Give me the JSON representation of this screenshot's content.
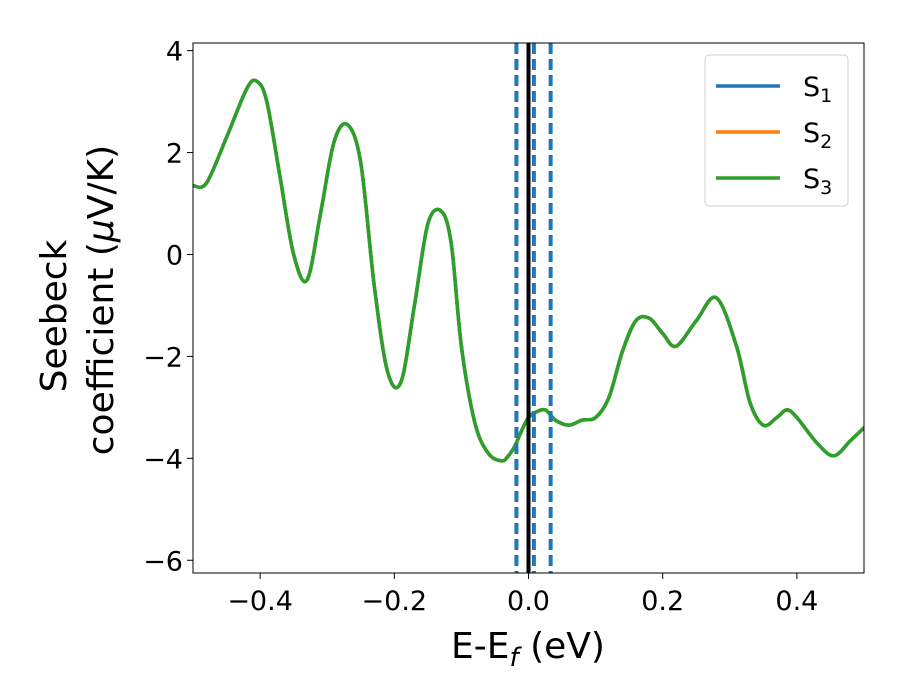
{
  "chart_data": {
    "type": "line",
    "title": "",
    "xlabel": "E-E",
    "xlabel_sub": "f",
    "xlabel_unit": " (eV)",
    "ylabel_line1": "Seebeck",
    "ylabel_line2": "coefficient  (",
    "ylabel_mu": "μ",
    "ylabel_unit": "V/K)",
    "xlim": [
      -0.5,
      0.5
    ],
    "ylim": [
      -6.25,
      4.15
    ],
    "xticks": [
      -0.4,
      -0.2,
      0.0,
      0.2,
      0.4
    ],
    "xtick_labels": [
      "−0.4",
      "−0.2",
      "0.0",
      "0.2",
      "0.4"
    ],
    "yticks": [
      -6,
      -4,
      -2,
      0,
      2,
      4
    ],
    "ytick_labels": [
      "−6",
      "−4",
      "−2",
      "0",
      "2",
      "4"
    ],
    "grid": false,
    "legend_position": "top-right",
    "fermi_line_x": 0.0,
    "dashed_lines_x": [
      -0.018,
      0.008,
      0.033
    ],
    "colors": {
      "s1": "#1f77b4",
      "s2": "#ff7f0e",
      "s3": "#2ca02c",
      "fermi": "#000000"
    },
    "series": [
      {
        "name": "S",
        "sub": "1",
        "color": "#1f77b4",
        "x": [
          -0.5,
          -0.48,
          -0.45,
          -0.42,
          -0.405,
          -0.39,
          -0.37,
          -0.35,
          -0.33,
          -0.31,
          -0.29,
          -0.27,
          -0.25,
          -0.23,
          -0.21,
          -0.19,
          -0.17,
          -0.15,
          -0.13,
          -0.115,
          -0.1,
          -0.08,
          -0.06,
          -0.04,
          -0.03,
          -0.02,
          -0.01,
          0.0,
          0.01,
          0.025,
          0.04,
          0.06,
          0.08,
          0.1,
          0.12,
          0.14,
          0.16,
          0.18,
          0.2,
          0.22,
          0.25,
          0.28,
          0.31,
          0.33,
          0.35,
          0.37,
          0.385,
          0.4,
          0.43,
          0.455,
          0.48,
          0.5
        ],
        "values": [
          1.35,
          1.4,
          2.3,
          3.25,
          3.4,
          3.0,
          1.5,
          0.0,
          -0.5,
          0.8,
          2.2,
          2.55,
          1.8,
          -0.6,
          -2.3,
          -2.5,
          -1.0,
          0.6,
          0.85,
          0.2,
          -1.8,
          -3.3,
          -3.9,
          -4.05,
          -3.95,
          -3.75,
          -3.45,
          -3.2,
          -3.1,
          -3.05,
          -3.25,
          -3.35,
          -3.25,
          -3.2,
          -2.8,
          -1.9,
          -1.3,
          -1.25,
          -1.55,
          -1.8,
          -1.3,
          -0.85,
          -1.8,
          -2.9,
          -3.35,
          -3.2,
          -3.05,
          -3.2,
          -3.7,
          -3.95,
          -3.65,
          -3.4
        ]
      },
      {
        "name": "S",
        "sub": "2",
        "color": "#ff7f0e",
        "x": [
          -0.5,
          -0.48,
          -0.45,
          -0.42,
          -0.405,
          -0.39,
          -0.37,
          -0.35,
          -0.33,
          -0.31,
          -0.29,
          -0.27,
          -0.25,
          -0.23,
          -0.21,
          -0.19,
          -0.17,
          -0.15,
          -0.13,
          -0.115,
          -0.1,
          -0.08,
          -0.06,
          -0.04,
          -0.03,
          -0.02,
          -0.01,
          0.0,
          0.01,
          0.025,
          0.04,
          0.06,
          0.08,
          0.1,
          0.12,
          0.14,
          0.16,
          0.18,
          0.2,
          0.22,
          0.25,
          0.28,
          0.31,
          0.33,
          0.35,
          0.37,
          0.385,
          0.4,
          0.43,
          0.455,
          0.48,
          0.5
        ],
        "values": [
          1.35,
          1.4,
          2.3,
          3.25,
          3.4,
          3.0,
          1.5,
          0.0,
          -0.5,
          0.8,
          2.2,
          2.55,
          1.8,
          -0.6,
          -2.3,
          -2.5,
          -1.0,
          0.6,
          0.85,
          0.2,
          -1.8,
          -3.3,
          -3.9,
          -4.05,
          -3.95,
          -3.75,
          -3.45,
          -3.2,
          -3.1,
          -3.05,
          -3.25,
          -3.35,
          -3.25,
          -3.2,
          -2.8,
          -1.9,
          -1.3,
          -1.25,
          -1.55,
          -1.8,
          -1.3,
          -0.85,
          -1.8,
          -2.9,
          -3.35,
          -3.2,
          -3.05,
          -3.2,
          -3.7,
          -3.95,
          -3.65,
          -3.4
        ]
      },
      {
        "name": "S",
        "sub": "3",
        "color": "#2ca02c",
        "x": [
          -0.5,
          -0.48,
          -0.45,
          -0.42,
          -0.405,
          -0.39,
          -0.37,
          -0.35,
          -0.33,
          -0.31,
          -0.29,
          -0.27,
          -0.25,
          -0.23,
          -0.21,
          -0.19,
          -0.17,
          -0.15,
          -0.13,
          -0.115,
          -0.1,
          -0.08,
          -0.06,
          -0.04,
          -0.03,
          -0.02,
          -0.01,
          0.0,
          0.01,
          0.025,
          0.04,
          0.06,
          0.08,
          0.1,
          0.12,
          0.14,
          0.16,
          0.18,
          0.2,
          0.22,
          0.25,
          0.28,
          0.31,
          0.33,
          0.35,
          0.37,
          0.385,
          0.4,
          0.43,
          0.455,
          0.48,
          0.5
        ],
        "values": [
          1.35,
          1.4,
          2.3,
          3.25,
          3.4,
          3.0,
          1.5,
          0.0,
          -0.5,
          0.8,
          2.2,
          2.55,
          1.8,
          -0.6,
          -2.3,
          -2.5,
          -1.0,
          0.6,
          0.85,
          0.2,
          -1.8,
          -3.3,
          -3.9,
          -4.05,
          -3.95,
          -3.75,
          -3.45,
          -3.2,
          -3.1,
          -3.05,
          -3.25,
          -3.35,
          -3.25,
          -3.2,
          -2.8,
          -1.9,
          -1.3,
          -1.25,
          -1.55,
          -1.8,
          -1.3,
          -0.85,
          -1.8,
          -2.9,
          -3.35,
          -3.2,
          -3.05,
          -3.2,
          -3.7,
          -3.95,
          -3.65,
          -3.4
        ]
      }
    ]
  }
}
